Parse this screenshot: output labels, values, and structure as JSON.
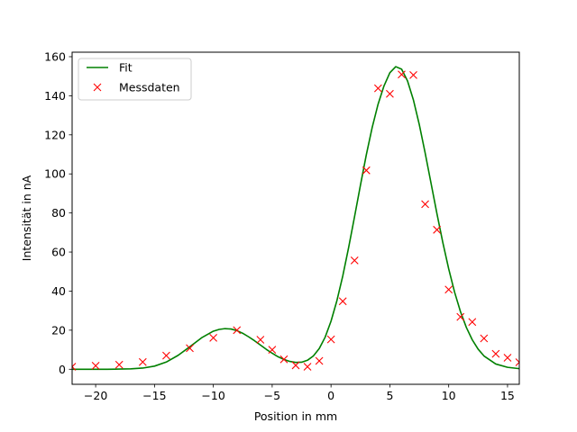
{
  "chart_data": {
    "type": "line",
    "xlabel": "Position in mm",
    "ylabel": "Intensität in nA",
    "xlim": [
      -22,
      16
    ],
    "ylim": [
      -7.7,
      162.3
    ],
    "xticks": [
      -20,
      -15,
      -10,
      -5,
      0,
      5,
      10,
      15
    ],
    "yticks": [
      0,
      20,
      40,
      60,
      80,
      100,
      120,
      140,
      160
    ],
    "grid": false,
    "legend_position": "top-left",
    "series": [
      {
        "name": "Fit",
        "style": "line",
        "color": "#008000",
        "x": [
          -22,
          -21,
          -20,
          -19,
          -18,
          -17,
          -16,
          -15,
          -14,
          -13,
          -12,
          -11,
          -10,
          -9.5,
          -9,
          -8.5,
          -8,
          -7.5,
          -7,
          -6.5,
          -6,
          -5.5,
          -5,
          -4.5,
          -4,
          -3.5,
          -3,
          -2.5,
          -2,
          -1.5,
          -1,
          -0.5,
          0,
          0.5,
          1,
          1.5,
          2,
          2.5,
          3,
          3.5,
          4,
          4.5,
          5,
          5.5,
          6,
          6.5,
          7,
          7.5,
          8,
          8.5,
          9,
          9.5,
          10,
          10.5,
          11,
          11.5,
          12,
          12.5,
          13,
          14,
          15,
          16
        ],
        "y": [
          0,
          0,
          0,
          0,
          0.1,
          0.2,
          0.6,
          1.6,
          3.7,
          7.1,
          11.5,
          16.1,
          19.5,
          20.4,
          20.8,
          20.6,
          19.8,
          18.4,
          16.6,
          14.6,
          12.4,
          10.2,
          8.2,
          6.4,
          5,
          4,
          3.5,
          3.6,
          4.6,
          6.8,
          10.6,
          16.4,
          24.6,
          35.1,
          47.8,
          62.4,
          78.1,
          94.2,
          109.8,
          123.8,
          135.7,
          145,
          151.8,
          154.9,
          153.6,
          147.6,
          137.9,
          125.3,
          110.7,
          95.2,
          79.7,
          64.9,
          51.4,
          39.5,
          29.5,
          21.4,
          15.1,
          10.3,
          6.8,
          2.7,
          1,
          0.3
        ]
      },
      {
        "name": "Messdaten",
        "style": "marker-x",
        "color": "#ff0000",
        "x": [
          -22,
          -20,
          -18,
          -16,
          -14,
          -12,
          -10,
          -8,
          -6,
          -5,
          -4,
          -3,
          -2,
          -1,
          0,
          1,
          2,
          3,
          4,
          5,
          6,
          7,
          8,
          9,
          10,
          11,
          12,
          13,
          14,
          15,
          16
        ],
        "y": [
          1.3,
          1.8,
          2.3,
          3.7,
          7,
          10.8,
          16.1,
          20,
          15.1,
          10,
          5.1,
          2,
          1.3,
          4.3,
          15.3,
          34.8,
          55.7,
          101.8,
          143.8,
          141,
          150.9,
          150.6,
          84.5,
          71.4,
          40.8,
          26.8,
          24.2,
          15.8,
          7.9,
          5.9,
          3.6
        ]
      }
    ]
  }
}
